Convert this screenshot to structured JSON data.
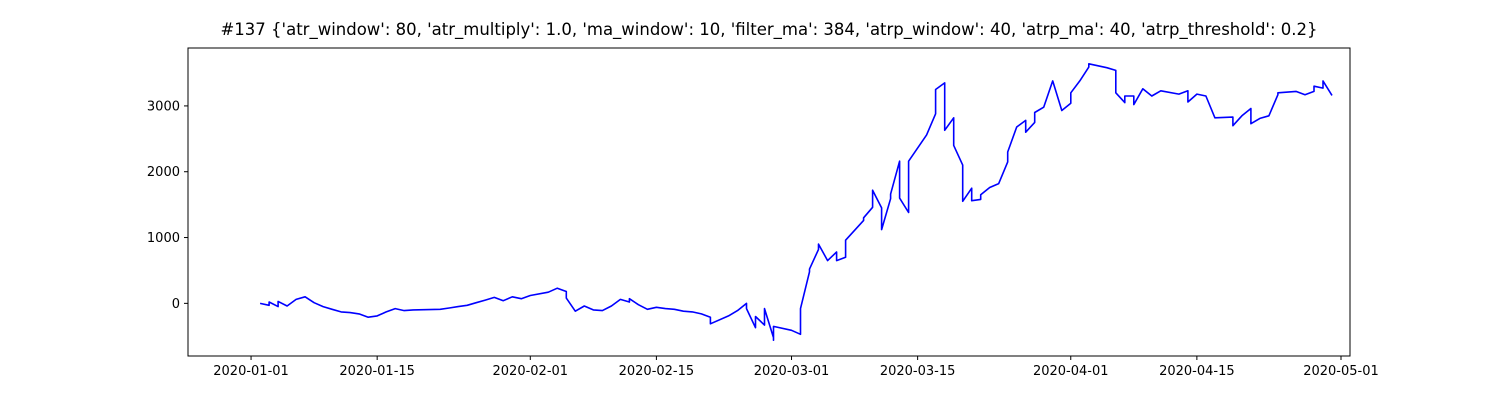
{
  "chart_data": {
    "type": "line",
    "title": "#137 {'atr_window': 80, 'atr_multiply': 1.0, 'ma_window': 10, 'filter_ma': 384, 'atrp_window': 40, 'atrp_ma': 40, 'atrp_threshold': 0.2}",
    "xlabel": "",
    "ylabel": "",
    "xlim": [
      "2019-12-25",
      "2020-05-02"
    ],
    "ylim": [
      -800,
      3880
    ],
    "grid": false,
    "line_color": "#0000ff",
    "x_ticks": [
      "2020-01-01",
      "2020-01-15",
      "2020-02-01",
      "2020-02-15",
      "2020-03-01",
      "2020-03-15",
      "2020-04-01",
      "2020-04-15",
      "2020-05-01"
    ],
    "y_ticks": [
      0,
      1000,
      2000,
      3000
    ],
    "series": [
      {
        "points": [
          [
            "2020-01-02",
            0
          ],
          [
            "2020-01-03",
            -30
          ],
          [
            "2020-01-03",
            20
          ],
          [
            "2020-01-04",
            -50
          ],
          [
            "2020-01-04",
            30
          ],
          [
            "2020-01-05",
            -40
          ],
          [
            "2020-01-06",
            60
          ],
          [
            "2020-01-07",
            100
          ],
          [
            "2020-01-08",
            10
          ],
          [
            "2020-01-09",
            -50
          ],
          [
            "2020-01-10",
            -90
          ],
          [
            "2020-01-11",
            -130
          ],
          [
            "2020-01-12",
            -140
          ],
          [
            "2020-01-13",
            -160
          ],
          [
            "2020-01-14",
            -210
          ],
          [
            "2020-01-15",
            -190
          ],
          [
            "2020-01-16",
            -130
          ],
          [
            "2020-01-17",
            -80
          ],
          [
            "2020-01-18",
            -110
          ],
          [
            "2020-01-19",
            -100
          ],
          [
            "2020-01-22",
            -90
          ],
          [
            "2020-01-23",
            -70
          ],
          [
            "2020-01-24",
            -50
          ],
          [
            "2020-01-25",
            -30
          ],
          [
            "2020-01-26",
            10
          ],
          [
            "2020-01-27",
            50
          ],
          [
            "2020-01-28",
            90
          ],
          [
            "2020-01-29",
            40
          ],
          [
            "2020-01-30",
            100
          ],
          [
            "2020-01-31",
            70
          ],
          [
            "2020-02-01",
            120
          ],
          [
            "2020-02-03",
            170
          ],
          [
            "2020-02-04",
            230
          ],
          [
            "2020-02-05",
            180
          ],
          [
            "2020-02-05",
            80
          ],
          [
            "2020-02-06",
            -120
          ],
          [
            "2020-02-07",
            -40
          ],
          [
            "2020-02-08",
            -100
          ],
          [
            "2020-02-09",
            -110
          ],
          [
            "2020-02-10",
            -40
          ],
          [
            "2020-02-11",
            60
          ],
          [
            "2020-02-12",
            20
          ],
          [
            "2020-02-12",
            70
          ],
          [
            "2020-02-13",
            -20
          ],
          [
            "2020-02-14",
            -90
          ],
          [
            "2020-02-15",
            -60
          ],
          [
            "2020-02-16",
            -80
          ],
          [
            "2020-02-17",
            -90
          ],
          [
            "2020-02-18",
            -120
          ],
          [
            "2020-02-19",
            -130
          ],
          [
            "2020-02-20",
            -160
          ],
          [
            "2020-02-21",
            -210
          ],
          [
            "2020-02-21",
            -310
          ],
          [
            "2020-02-23",
            -190
          ],
          [
            "2020-02-24",
            -110
          ],
          [
            "2020-02-25",
            0
          ],
          [
            "2020-02-25",
            -80
          ],
          [
            "2020-02-26",
            -370
          ],
          [
            "2020-02-26",
            -200
          ],
          [
            "2020-02-27",
            -330
          ],
          [
            "2020-02-27",
            -80
          ],
          [
            "2020-02-28",
            -520
          ],
          [
            "2020-02-28",
            -560
          ],
          [
            "2020-02-28",
            -350
          ],
          [
            "2020-03-01",
            -410
          ],
          [
            "2020-03-02",
            -470
          ],
          [
            "2020-03-02",
            -80
          ],
          [
            "2020-03-03",
            480
          ],
          [
            "2020-03-03",
            520
          ],
          [
            "2020-03-04",
            820
          ],
          [
            "2020-03-04",
            900
          ],
          [
            "2020-03-05",
            650
          ],
          [
            "2020-03-06",
            780
          ],
          [
            "2020-03-06",
            650
          ],
          [
            "2020-03-07",
            700
          ],
          [
            "2020-03-07",
            960
          ],
          [
            "2020-03-08",
            1110
          ],
          [
            "2020-03-09",
            1260
          ],
          [
            "2020-03-09",
            1300
          ],
          [
            "2020-03-10",
            1460
          ],
          [
            "2020-03-10",
            1720
          ],
          [
            "2020-03-11",
            1450
          ],
          [
            "2020-03-11",
            1120
          ],
          [
            "2020-03-12",
            1590
          ],
          [
            "2020-03-12",
            1660
          ],
          [
            "2020-03-13",
            2160
          ],
          [
            "2020-03-13",
            1600
          ],
          [
            "2020-03-14",
            1380
          ],
          [
            "2020-03-14",
            2160
          ],
          [
            "2020-03-16",
            2560
          ],
          [
            "2020-03-17",
            2880
          ],
          [
            "2020-03-17",
            3250
          ],
          [
            "2020-03-18",
            3350
          ],
          [
            "2020-03-18",
            2630
          ],
          [
            "2020-03-19",
            2820
          ],
          [
            "2020-03-19",
            2400
          ],
          [
            "2020-03-20",
            2100
          ],
          [
            "2020-03-20",
            1550
          ],
          [
            "2020-03-21",
            1750
          ],
          [
            "2020-03-21",
            1560
          ],
          [
            "2020-03-22",
            1580
          ],
          [
            "2020-03-22",
            1650
          ],
          [
            "2020-03-23",
            1760
          ],
          [
            "2020-03-24",
            1820
          ],
          [
            "2020-03-25",
            2150
          ],
          [
            "2020-03-25",
            2300
          ],
          [
            "2020-03-26",
            2680
          ],
          [
            "2020-03-27",
            2780
          ],
          [
            "2020-03-27",
            2600
          ],
          [
            "2020-03-28",
            2750
          ],
          [
            "2020-03-28",
            2900
          ],
          [
            "2020-03-29",
            2980
          ],
          [
            "2020-03-30",
            3380
          ],
          [
            "2020-03-31",
            2930
          ],
          [
            "2020-04-01",
            3040
          ],
          [
            "2020-04-01",
            3200
          ],
          [
            "2020-04-02",
            3380
          ],
          [
            "2020-04-03",
            3590
          ],
          [
            "2020-04-03",
            3640
          ],
          [
            "2020-04-05",
            3580
          ],
          [
            "2020-04-06",
            3540
          ],
          [
            "2020-04-06",
            3200
          ],
          [
            "2020-04-07",
            3050
          ],
          [
            "2020-04-07",
            3150
          ],
          [
            "2020-04-08",
            3150
          ],
          [
            "2020-04-08",
            3020
          ],
          [
            "2020-04-09",
            3260
          ],
          [
            "2020-04-10",
            3150
          ],
          [
            "2020-04-11",
            3230
          ],
          [
            "2020-04-13",
            3180
          ],
          [
            "2020-04-14",
            3230
          ],
          [
            "2020-04-14",
            3060
          ],
          [
            "2020-04-15",
            3180
          ],
          [
            "2020-04-16",
            3150
          ],
          [
            "2020-04-17",
            2820
          ],
          [
            "2020-04-19",
            2830
          ],
          [
            "2020-04-19",
            2700
          ],
          [
            "2020-04-20",
            2850
          ],
          [
            "2020-04-21",
            2960
          ],
          [
            "2020-04-21",
            2730
          ],
          [
            "2020-04-22",
            2810
          ],
          [
            "2020-04-23",
            2850
          ],
          [
            "2020-04-24",
            3170
          ],
          [
            "2020-04-24",
            3200
          ],
          [
            "2020-04-26",
            3220
          ],
          [
            "2020-04-27",
            3170
          ],
          [
            "2020-04-28",
            3220
          ],
          [
            "2020-04-28",
            3300
          ],
          [
            "2020-04-29",
            3270
          ],
          [
            "2020-04-29",
            3380
          ],
          [
            "2020-04-30",
            3160
          ]
        ]
      }
    ]
  }
}
